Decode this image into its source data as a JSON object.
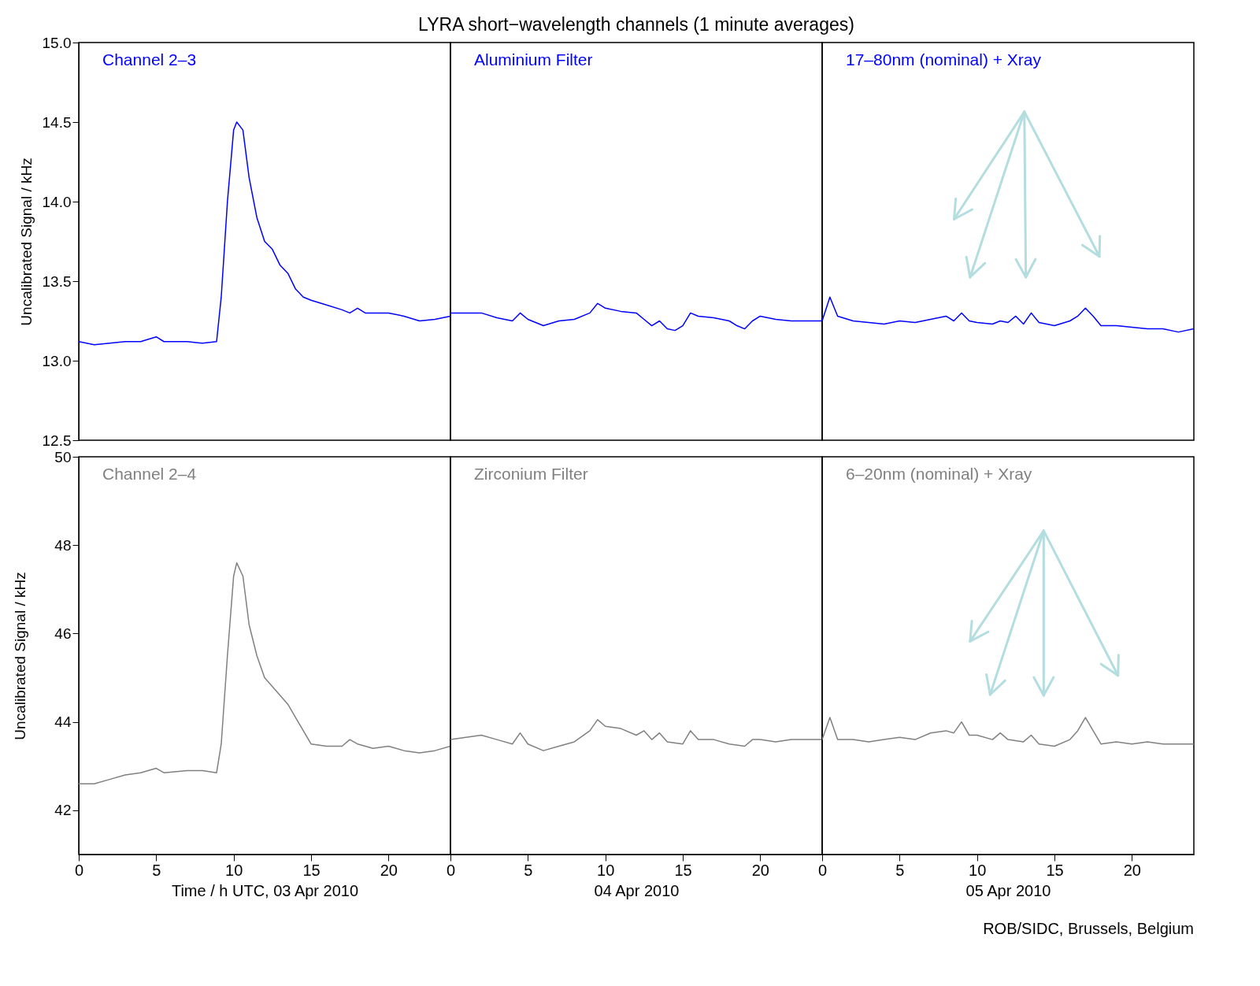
{
  "chart_data": [
    {
      "type": "line",
      "annotations": [
        "Channel 2–3"
      ],
      "ylabel": "Uncalibrated Signal / kHz",
      "xlim": [
        0,
        24
      ],
      "xticks": [
        0,
        5,
        10,
        15,
        20
      ],
      "ylim": [
        12.5,
        15
      ],
      "yticks": [
        12.5,
        {
          "value": 13,
          "label": "13.0"
        },
        13.5,
        {
          "value": 14,
          "label": "14.0"
        },
        14.5,
        {
          "value": 15,
          "label": "15.0"
        }
      ],
      "tick_labels": "y",
      "x": [
        0,
        1,
        2,
        3,
        4,
        5,
        5.5,
        7,
        8,
        8.9,
        9.2,
        9.6,
        10,
        10.2,
        10.6,
        11,
        11.5,
        12,
        12.5,
        13,
        13.5,
        14,
        14.5,
        15,
        16,
        17,
        17.5,
        18,
        18.5,
        19,
        20,
        21,
        22,
        23,
        24
      ],
      "series": [
        {
          "color": "#0000ff",
          "values": [
            13.12,
            13.1,
            13.11,
            13.12,
            13.12,
            13.15,
            13.12,
            13.12,
            13.11,
            13.12,
            13.4,
            14.0,
            14.45,
            14.5,
            14.45,
            14.15,
            13.9,
            13.75,
            13.7,
            13.6,
            13.55,
            13.45,
            13.4,
            13.38,
            13.35,
            13.32,
            13.3,
            13.33,
            13.3,
            13.3,
            13.3,
            13.28,
            13.25,
            13.26,
            13.28
          ]
        }
      ]
    },
    {
      "type": "line",
      "title": "LYRA short−wavelength channels (1 minute averages)",
      "annotations": [
        "Aluminium Filter"
      ],
      "xlim": [
        0,
        24
      ],
      "xticks": [
        0,
        5,
        10,
        15,
        20
      ],
      "ylim": [
        12.5,
        15
      ],
      "yticks": [
        12.5,
        13,
        13.5,
        14,
        14.5,
        15
      ],
      "tick_labels": false,
      "x": [
        0,
        2,
        3,
        4,
        4.5,
        5,
        6,
        7,
        8,
        9,
        9.5,
        10,
        11,
        12,
        12.5,
        13,
        13.5,
        14,
        14.5,
        15,
        15.5,
        16,
        17,
        18,
        18.5,
        19,
        19.5,
        20,
        21,
        22,
        24
      ],
      "series": [
        {
          "color": "#0000ff",
          "values": [
            13.3,
            13.3,
            13.27,
            13.25,
            13.3,
            13.26,
            13.22,
            13.25,
            13.26,
            13.3,
            13.36,
            13.33,
            13.31,
            13.3,
            13.26,
            13.22,
            13.25,
            13.2,
            13.19,
            13.22,
            13.3,
            13.28,
            13.27,
            13.25,
            13.22,
            13.2,
            13.25,
            13.28,
            13.26,
            13.25,
            13.25
          ]
        }
      ]
    },
    {
      "type": "line",
      "annotations": [
        "17–80nm (nominal) + Xray"
      ],
      "xlim": [
        0,
        24
      ],
      "xticks": [
        0,
        5,
        10,
        15,
        20
      ],
      "ylim": [
        12.5,
        15
      ],
      "yticks": [
        12.5,
        13,
        13.5,
        14,
        14.5,
        15
      ],
      "tick_labels": false,
      "x": [
        0,
        0.5,
        1,
        2,
        3,
        4,
        5,
        6,
        7,
        8,
        8.5,
        9,
        9.5,
        10,
        11,
        11.5,
        12,
        12.5,
        13,
        13.5,
        14,
        15,
        16,
        16.5,
        17,
        17.5,
        18,
        19,
        20,
        21,
        22,
        23,
        24
      ],
      "series": [
        {
          "color": "#0000ff",
          "values": [
            13.25,
            13.4,
            13.28,
            13.25,
            13.24,
            13.23,
            13.25,
            13.24,
            13.26,
            13.28,
            13.25,
            13.3,
            13.25,
            13.24,
            13.23,
            13.25,
            13.24,
            13.28,
            13.23,
            13.3,
            13.24,
            13.22,
            13.25,
            13.28,
            13.33,
            13.28,
            13.22,
            13.22,
            13.21,
            13.2,
            13.2,
            13.18,
            13.2
          ]
        }
      ]
    },
    {
      "type": "line",
      "annotations": [
        "Channel 2–4"
      ],
      "ylabel": "Uncalibrated Signal / kHz",
      "xlabel": "Time / h UTC, 03 Apr 2010",
      "xlim": [
        0,
        24
      ],
      "xticks": [
        0,
        5,
        10,
        15,
        20
      ],
      "ylim": [
        41,
        50
      ],
      "yticks": [
        42,
        44,
        46,
        48,
        50
      ],
      "x": [
        0,
        1,
        2,
        3,
        4,
        5,
        5.5,
        7,
        8,
        8.9,
        9.2,
        9.6,
        10,
        10.2,
        10.6,
        11,
        11.5,
        12,
        12.5,
        13,
        13.5,
        14,
        14.5,
        15,
        16,
        17,
        17.5,
        18,
        19,
        20,
        21,
        22,
        23,
        24
      ],
      "series": [
        {
          "color": "#808080",
          "values": [
            42.6,
            42.6,
            42.7,
            42.8,
            42.85,
            42.95,
            42.85,
            42.9,
            42.9,
            42.85,
            43.5,
            45.5,
            47.3,
            47.6,
            47.3,
            46.2,
            45.5,
            45.0,
            44.8,
            44.6,
            44.4,
            44.1,
            43.8,
            43.5,
            43.45,
            43.45,
            43.6,
            43.5,
            43.4,
            43.45,
            43.35,
            43.3,
            43.35,
            43.45
          ]
        }
      ]
    },
    {
      "type": "line",
      "annotations": [
        "Zirconium Filter"
      ],
      "xlabel": "04 Apr 2010",
      "xlim": [
        0,
        24
      ],
      "xticks": [
        0,
        5,
        10,
        15,
        20
      ],
      "ylim": [
        41,
        50
      ],
      "yticks": [
        42,
        44,
        46,
        48,
        50
      ],
      "tick_labels": "x",
      "x": [
        0,
        2,
        3,
        4,
        4.5,
        5,
        6,
        7,
        8,
        9,
        9.5,
        10,
        11,
        12,
        12.5,
        13,
        13.5,
        14,
        15,
        15.5,
        16,
        17,
        18,
        19,
        19.5,
        20,
        21,
        22,
        24
      ],
      "series": [
        {
          "color": "#808080",
          "values": [
            43.6,
            43.7,
            43.6,
            43.5,
            43.75,
            43.5,
            43.35,
            43.45,
            43.55,
            43.8,
            44.05,
            43.9,
            43.85,
            43.7,
            43.8,
            43.6,
            43.75,
            43.55,
            43.5,
            43.8,
            43.6,
            43.6,
            43.5,
            43.45,
            43.6,
            43.6,
            43.55,
            43.6,
            43.6
          ]
        }
      ]
    },
    {
      "type": "line",
      "annotations": [
        "6–20nm (nominal) + Xray",
        "ROB/SIDC, Brussels, Belgium"
      ],
      "xlabel": "05 Apr 2010",
      "xlim": [
        0,
        24
      ],
      "xticks": [
        0,
        5,
        10,
        15,
        20
      ],
      "ylim": [
        41,
        50
      ],
      "yticks": [
        42,
        44,
        46,
        48,
        50
      ],
      "tick_labels": "x",
      "x": [
        0,
        0.5,
        1,
        2,
        3,
        4,
        5,
        6,
        7,
        8,
        8.5,
        9,
        9.5,
        10,
        11,
        11.5,
        12,
        13,
        13.5,
        14,
        15,
        16,
        16.5,
        17,
        17.5,
        18,
        19,
        20,
        21,
        22,
        23,
        24
      ],
      "series": [
        {
          "color": "#808080",
          "values": [
            43.6,
            44.1,
            43.6,
            43.6,
            43.55,
            43.6,
            43.65,
            43.6,
            43.75,
            43.8,
            43.75,
            44.0,
            43.7,
            43.7,
            43.6,
            43.75,
            43.6,
            43.55,
            43.7,
            43.5,
            43.45,
            43.6,
            43.8,
            44.1,
            43.8,
            43.5,
            43.55,
            43.5,
            43.55,
            43.5,
            43.5,
            43.5
          ]
        }
      ]
    }
  ]
}
